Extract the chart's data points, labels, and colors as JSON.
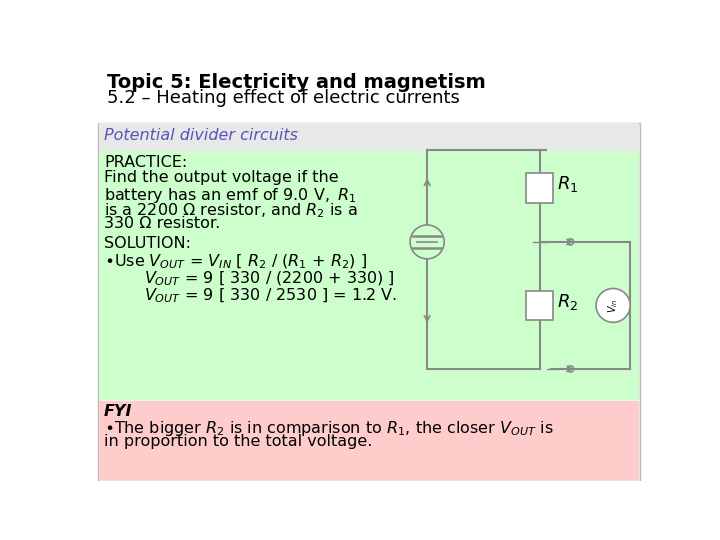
{
  "title_bold": "Topic 5: Electricity and magnetism",
  "title_normal": "5.2 – Heating effect of electric currents",
  "section_header": "Potential divider circuits",
  "section_header_color": "#5555bb",
  "green_bg_color": "#ccffcc",
  "pink_bg_color": "#ffcccc",
  "gray_bg_color": "#e8e8e8",
  "wire_color": "#888888",
  "font_size_title1": 14,
  "font_size_title2": 13,
  "font_size_body": 11.5
}
